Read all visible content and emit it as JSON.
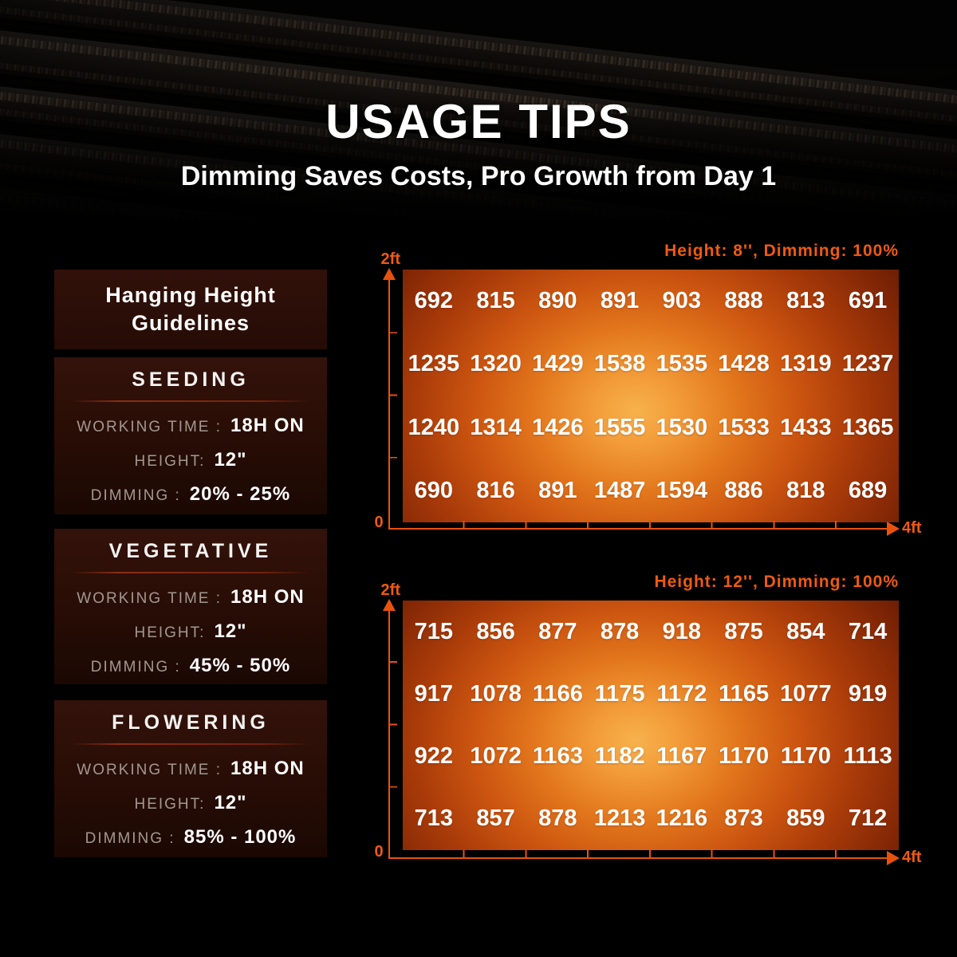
{
  "header": {
    "title": "USAGE TIPS",
    "subtitle": "Dimming Saves Costs, Pro Growth from Day 1"
  },
  "guidelines_panel": {
    "header": "Hanging Height Guidelines",
    "stages": [
      {
        "name": "SEEDING",
        "working_time_label": "WORKING TIME :",
        "working_time": "18H ON",
        "height_label": "HEIGHT:",
        "height": "12\"",
        "dimming_label": "DIMMING :",
        "dimming": "20% - 25%"
      },
      {
        "name": "VEGETATIVE",
        "working_time_label": "WORKING TIME :",
        "working_time": "18H ON",
        "height_label": "HEIGHT:",
        "height": "12\"",
        "dimming_label": "DIMMING :",
        "dimming": "45% - 50%"
      },
      {
        "name": "FLOWERING",
        "working_time_label": "WORKING TIME :",
        "working_time": "18H ON",
        "height_label": "HEIGHT:",
        "height": "12\"",
        "dimming_label": "DIMMING :",
        "dimming": "85% - 100%"
      }
    ]
  },
  "chart_data": [
    {
      "type": "heatmap",
      "title": "Height: 8'', Dimming: 100%",
      "x_axis": {
        "origin_label": "0",
        "end_label": "4ft",
        "ticks_between": 7
      },
      "y_axis": {
        "end_label": "2ft",
        "ticks_between": 3
      },
      "grid_size": "8 columns x 4 rows",
      "rows": [
        [
          692,
          815,
          890,
          891,
          903,
          888,
          813,
          691
        ],
        [
          1235,
          1320,
          1429,
          1538,
          1535,
          1428,
          1319,
          1237
        ],
        [
          1240,
          1314,
          1426,
          1555,
          1530,
          1533,
          1433,
          1365
        ],
        [
          690,
          816,
          891,
          1487,
          1594,
          886,
          818,
          689
        ]
      ]
    },
    {
      "type": "heatmap",
      "title": "Height: 12'', Dimming: 100%",
      "x_axis": {
        "origin_label": "0",
        "end_label": "4ft",
        "ticks_between": 7
      },
      "y_axis": {
        "end_label": "2ft",
        "ticks_between": 3
      },
      "grid_size": "8 columns x 4 rows",
      "rows": [
        [
          715,
          856,
          877,
          878,
          918,
          875,
          854,
          714
        ],
        [
          917,
          1078,
          1166,
          1175,
          1172,
          1165,
          1077,
          919
        ],
        [
          922,
          1072,
          1163,
          1182,
          1167,
          1170,
          1170,
          1113
        ],
        [
          713,
          857,
          878,
          1213,
          1216,
          873,
          859,
          712
        ]
      ]
    }
  ],
  "colors": {
    "accent_orange": "#ef5a10",
    "axis_orange": "#e8520e",
    "heat_center": "#f7b24c",
    "heat_edge": "#531203",
    "panel_bg": "#2d0f07",
    "label_gray": "#a29890"
  }
}
